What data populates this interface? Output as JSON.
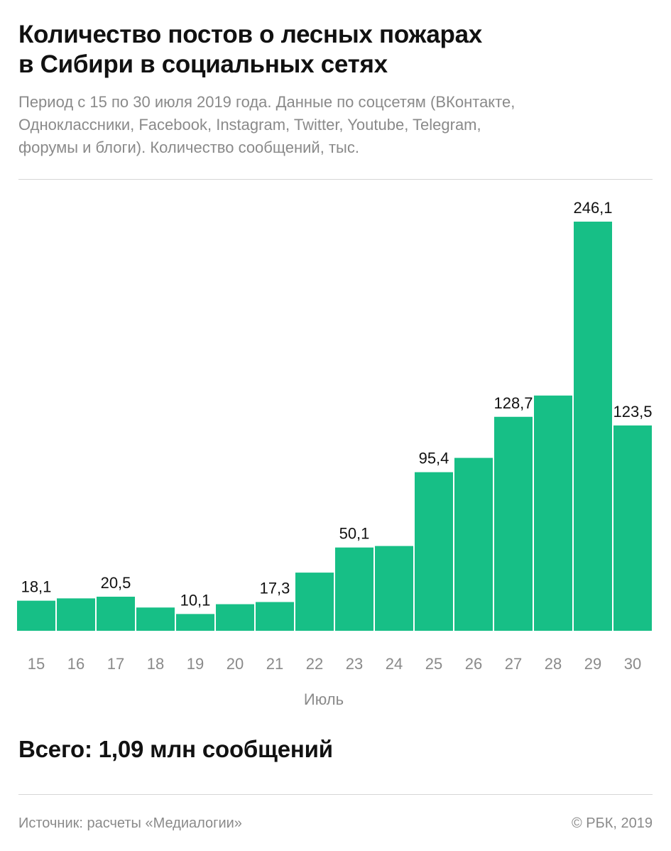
{
  "header": {
    "title_lines": [
      "Количество постов о лесных пожарах",
      "в Сибири в социальных сетях"
    ],
    "subtitle_lines": [
      "Период с 15 по 30 июля 2019 года. Данные по соцсетям (ВКонтакте,",
      "Одноклассники, Facebook, Instagram, Twitter, Youtube, Telegram,",
      "форумы и блоги). Количество сообщений, тыс."
    ]
  },
  "chart_data": {
    "type": "bar",
    "title": "Количество постов о лесных пожарах в Сибири в социальных сетях",
    "xlabel": "Июль",
    "ylabel": "Количество сообщений, тыс.",
    "categories": [
      "15",
      "16",
      "17",
      "18",
      "19",
      "20",
      "21",
      "22",
      "23",
      "24",
      "25",
      "26",
      "27",
      "28",
      "29",
      "30"
    ],
    "values": [
      18.1,
      19.5,
      20.5,
      14.0,
      10.1,
      16.0,
      17.3,
      35.0,
      50.1,
      51.0,
      95.4,
      104.0,
      128.7,
      141.5,
      246.1,
      123.5
    ],
    "labels": [
      "18,1",
      "",
      "20,5",
      "",
      "10,1",
      "",
      "17,3",
      "",
      "50,1",
      "",
      "95,4",
      "",
      "128,7",
      "",
      "246,1",
      "123,5"
    ],
    "ylim": [
      0,
      246.1
    ],
    "grid": false,
    "bar_color": "#17bf86"
  },
  "footer": {
    "total": "Всего: 1,09 млн сообщений",
    "source": "Источник: расчеты «Медиалогии»",
    "copyright": "© РБК, 2019"
  }
}
